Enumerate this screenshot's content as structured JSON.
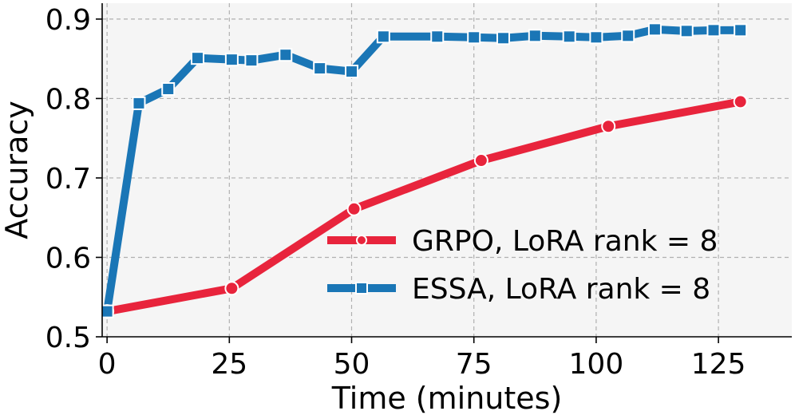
{
  "chart_data": {
    "type": "line",
    "title": "",
    "xlabel": "Time (minutes)",
    "ylabel": "Accuracy",
    "xlim": [
      -1,
      140
    ],
    "ylim": [
      0.5,
      0.92
    ],
    "xticks": [
      0,
      25,
      50,
      75,
      100,
      125
    ],
    "xtick_labels": [
      "0",
      "25",
      "50",
      "75",
      "100",
      "125"
    ],
    "yticks": [
      0.5,
      0.6,
      0.7,
      0.8,
      0.9
    ],
    "ytick_labels": [
      "0.5",
      "0.6",
      "0.7",
      "0.8",
      "0.9"
    ],
    "grid": true,
    "legend_position": "lower-right",
    "series": [
      {
        "name": "GRPO, LoRA rank = 8",
        "color": "#e8243c",
        "marker": "circle",
        "x": [
          0,
          25.5,
          50.5,
          76.5,
          102.5,
          129.5
        ],
        "y": [
          0.532,
          0.561,
          0.661,
          0.722,
          0.765,
          0.796
        ]
      },
      {
        "name": "ESSA, LoRA rank = 8",
        "color": "#1a76b6",
        "marker": "square",
        "x": [
          0,
          6.5,
          12.5,
          18.5,
          25.5,
          29.5,
          36.5,
          43.5,
          50,
          56.5,
          67.5,
          75,
          81,
          87.5,
          94.5,
          100,
          106.5,
          112,
          118.5,
          124,
          129.5
        ],
        "y": [
          0.532,
          0.794,
          0.812,
          0.851,
          0.849,
          0.848,
          0.855,
          0.838,
          0.834,
          0.878,
          0.878,
          0.877,
          0.876,
          0.879,
          0.878,
          0.877,
          0.879,
          0.887,
          0.885,
          0.886,
          0.886
        ]
      }
    ]
  }
}
